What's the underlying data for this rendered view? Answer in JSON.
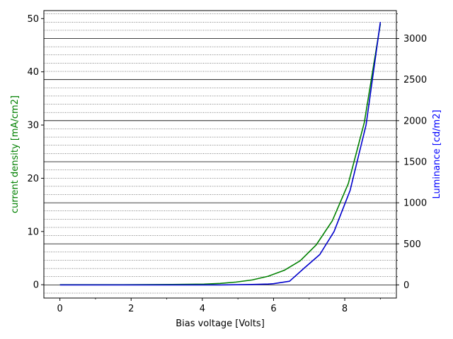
{
  "chart_data": {
    "type": "line",
    "xlabel": "Bias voltage [Volts]",
    "ylabel_left": "current density [mA/cm2]",
    "ylabel_right": "Luminance [cd/m2]",
    "xlim": [
      -0.45,
      9.45
    ],
    "ylim_left": [
      -2.5,
      51.5
    ],
    "ylim_right": [
      -160,
      3340
    ],
    "xticks": [
      0,
      2,
      4,
      6,
      8
    ],
    "yticks_left": [
      0,
      10,
      20,
      30,
      40,
      50
    ],
    "yticks_right": [
      0,
      500,
      1000,
      1500,
      2000,
      2500,
      3000
    ],
    "grid": "horizontal major and minor lines on luminance axis",
    "colors": {
      "left_axis": "#008000",
      "right_axis": "#0000ff",
      "current_series": "#008000",
      "luminance_series": "#0000cc"
    },
    "series": [
      {
        "axis": "left",
        "x": [
          0,
          0.45,
          0.9,
          1.35,
          1.8,
          2.25,
          2.7,
          3.15,
          3.6,
          4.05,
          4.5,
          4.95,
          5.4,
          5.85,
          6.3,
          6.75,
          7.2,
          7.65,
          8.1,
          8.55,
          9.0
        ],
        "values": [
          0,
          0,
          0,
          0,
          0,
          0.02,
          0.03,
          0.05,
          0.08,
          0.12,
          0.25,
          0.5,
          0.9,
          1.6,
          2.7,
          4.5,
          7.5,
          12,
          19,
          30.5,
          49
        ]
      },
      {
        "axis": "right",
        "x": [
          0,
          0.45,
          0.9,
          1.35,
          1.8,
          2.25,
          2.7,
          3.15,
          3.6,
          4.05,
          4.5,
          4.95,
          5.4,
          5.85,
          6.0,
          6.45,
          6.85,
          7.3,
          7.7,
          8.15,
          8.6,
          9.0
        ],
        "values": [
          0,
          0,
          0,
          0,
          0,
          0,
          0,
          0,
          0,
          0,
          0,
          2,
          5,
          10,
          15,
          45,
          200,
          370,
          650,
          1150,
          1950,
          3200
        ]
      }
    ]
  }
}
